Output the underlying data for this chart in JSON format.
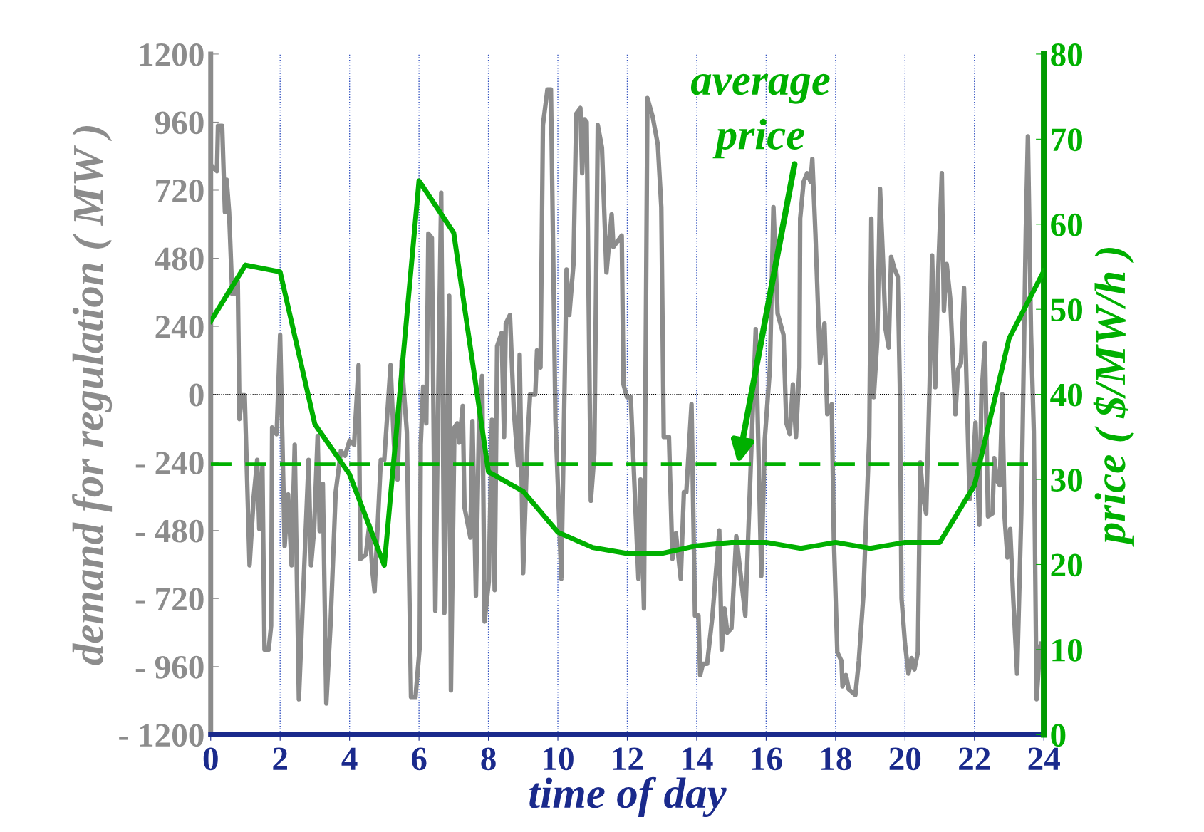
{
  "chart_data": {
    "type": "line",
    "xlabel": "time of day",
    "ylabel": "demand for regulation ( MW )",
    "y2label": "price ( $/MW/h )",
    "xlim": [
      0,
      24
    ],
    "xticks": [
      0,
      2,
      4,
      6,
      8,
      10,
      12,
      14,
      16,
      18,
      20,
      22,
      24
    ],
    "ylim": [
      -1200,
      1200
    ],
    "yticks": [
      {
        "value": -1200,
        "label": "- 1200"
      },
      {
        "value": -960,
        "label": "- 960"
      },
      {
        "value": -720,
        "label": "- 720"
      },
      {
        "value": -480,
        "label": "- 480"
      },
      {
        "value": -240,
        "label": "- 240"
      },
      0,
      240,
      480,
      720,
      960,
      1200
    ],
    "y2lim": [
      0,
      80
    ],
    "y2ticks": [
      0,
      10,
      20,
      30,
      40,
      50,
      60,
      70,
      80
    ],
    "grid": "x",
    "legend": false,
    "ref_lines": [
      {
        "axis": "y",
        "value": 0,
        "color": "#000000",
        "line_style": "dotted"
      },
      {
        "axis": "y2",
        "value": 31.8,
        "color": "#00b000",
        "line_style": "dashed"
      }
    ],
    "annotations": [
      "average\nprice"
    ],
    "series": [
      {
        "axis": "y",
        "color": "#8c8c8c",
        "x": [
          0,
          0.0,
          0.18,
          0.21,
          0.33,
          0.41,
          0.46,
          0.53,
          0.62,
          0.7,
          0.78,
          0.83,
          0.9,
          0.98,
          1.12,
          1.24,
          1.34,
          1.4,
          1.49,
          1.55,
          1.67,
          1.74,
          1.77,
          1.9,
          2.0,
          2.13,
          2.23,
          2.33,
          2.42,
          2.54,
          2.82,
          2.89,
          2.98,
          3.08,
          3.14,
          3.23,
          3.33,
          3.45,
          3.6,
          3.75,
          3.87,
          4.0,
          4.13,
          4.26,
          4.31,
          4.47,
          4.57,
          4.66,
          4.72,
          4.9,
          5.0,
          5.18,
          5.28,
          5.38,
          5.5,
          5.65,
          5.77,
          5.9,
          6.02,
          6.05,
          6.12,
          6.21,
          6.27,
          6.37,
          6.47,
          6.56,
          6.64,
          6.73,
          6.87,
          6.92,
          7.02,
          7.1,
          7.16,
          7.26,
          7.31,
          7.48,
          7.54,
          7.64,
          7.74,
          7.82,
          7.89,
          8.01,
          8.1,
          8.18,
          8.25,
          8.38,
          8.45,
          8.5,
          8.62,
          8.73,
          8.85,
          8.9,
          9.0,
          9.13,
          9.2,
          9.35,
          9.4,
          9.5,
          9.57,
          9.7,
          9.8,
          9.93,
          10.1,
          10.25,
          10.33,
          10.45,
          10.53,
          10.65,
          10.7,
          10.77,
          10.83,
          10.95,
          11.05,
          11.15,
          11.27,
          11.4,
          11.55,
          11.6,
          11.84,
          11.89,
          11.99,
          12.1,
          12.32,
          12.38,
          12.48,
          12.58,
          12.73,
          12.88,
          12.98,
          13.05,
          13.2,
          13.3,
          13.4,
          13.54,
          13.63,
          13.7,
          13.85,
          13.95,
          14.05,
          14.1,
          14.18,
          14.3,
          14.45,
          14.65,
          14.72,
          14.8,
          14.88,
          15.0,
          15.14,
          15.4,
          15.7,
          15.86,
          15.96,
          16.11,
          16.21,
          16.33,
          16.5,
          16.58,
          16.68,
          16.77,
          16.86,
          16.96,
          16.98,
          17.08,
          17.18,
          17.28,
          17.33,
          17.42,
          17.55,
          17.68,
          17.76,
          17.89,
          17.95,
          18.05,
          18.17,
          18.2,
          18.3,
          18.38,
          18.57,
          18.67,
          18.8,
          18.97,
          19.03,
          19.1,
          19.2,
          19.28,
          19.37,
          19.44,
          19.53,
          19.6,
          19.69,
          19.79,
          19.85,
          19.9,
          20.0,
          20.1,
          20.19,
          20.27,
          20.37,
          20.44,
          20.52,
          20.61,
          20.71,
          20.78,
          20.87,
          20.96,
          21.06,
          21.12,
          21.2,
          21.3,
          21.45,
          21.53,
          21.61,
          21.7,
          21.78,
          21.86,
          21.95,
          22.03,
          22.14,
          22.2,
          22.3,
          22.39,
          22.52,
          22.57,
          22.65,
          22.73,
          22.8,
          22.87,
          22.95,
          23.03,
          23.12,
          23.23,
          23.35,
          23.48,
          23.54,
          23.63,
          23.71,
          23.79,
          23.89,
          23.92
        ],
        "values": [
          -1200,
          810,
          787,
          947,
          947,
          643,
          757,
          643,
          354,
          354,
          400,
          -87,
          -3,
          -3,
          -603,
          -360,
          -231,
          -474,
          -254,
          -900,
          -900,
          -816,
          -117,
          -140,
          210,
          -535,
          -353,
          -603,
          -178,
          -1075,
          -231,
          -603,
          -474,
          -147,
          -482,
          -315,
          -1090,
          -816,
          -345,
          -200,
          -216,
          -163,
          -178,
          103,
          -581,
          -565,
          -459,
          -626,
          -695,
          -231,
          -231,
          103,
          -178,
          -300,
          119,
          -132,
          -1067,
          -1067,
          -892,
          -178,
          27,
          -102,
          567,
          552,
          -763,
          43,
          711,
          -771,
          347,
          -1044,
          -117,
          -102,
          -170,
          -41,
          -398,
          -505,
          -94,
          -710,
          -18,
          65,
          -801,
          -660,
          -90,
          -690,
          170,
          217,
          -150,
          250,
          280,
          -55,
          -250,
          140,
          -630,
          -150,
          0,
          0,
          155,
          95,
          950,
          1075,
          1075,
          -90,
          -650,
          440,
          280,
          460,
          990,
          1010,
          780,
          970,
          960,
          -375,
          -210,
          950,
          870,
          430,
          635,
          520,
          560,
          35,
          -10,
          -10,
          -650,
          -300,
          -755,
          1045,
          980,
          880,
          660,
          -150,
          -150,
          -580,
          -490,
          -650,
          -345,
          -345,
          -35,
          -780,
          -780,
          -990,
          -950,
          -950,
          -785,
          -480,
          -900,
          -755,
          -840,
          -825,
          -500,
          -780,
          230,
          -640,
          -160,
          95,
          660,
          285,
          210,
          -100,
          -140,
          35,
          -150,
          95,
          620,
          750,
          780,
          750,
          830,
          565,
          110,
          250,
          -70,
          -35,
          -510,
          -910,
          -940,
          -1030,
          -990,
          -1040,
          -1060,
          -940,
          -710,
          -150,
          620,
          -10,
          190,
          725,
          460,
          230,
          165,
          485,
          445,
          415,
          35,
          -720,
          -880,
          -985,
          -930,
          -970,
          -910,
          -240,
          -360,
          -420,
          40,
          490,
          25,
          445,
          780,
          295,
          460,
          340,
          -70,
          90,
          110,
          375,
          5,
          -370,
          -270,
          -100,
          -460,
          -10,
          180,
          -430,
          -420,
          -225,
          -305,
          -320,
          0,
          -435,
          -575,
          -475,
          -725,
          -985,
          -420,
          580,
          910,
          215,
          -130,
          -1075,
          -890,
          -880
        ]
      },
      {
        "axis": "y2",
        "color": "#00b000",
        "x": [
          0,
          1,
          2,
          3,
          4,
          5,
          6,
          7,
          8,
          9,
          10,
          11,
          12,
          13,
          14,
          15,
          16,
          17,
          18,
          19,
          20,
          21,
          22,
          23,
          24
        ],
        "values": [
          48.6,
          55.2,
          54.4,
          36.5,
          30.6,
          19.9,
          65.1,
          59.0,
          30.9,
          28.6,
          23.8,
          22.0,
          21.3,
          21.3,
          22.2,
          22.6,
          22.6,
          21.9,
          22.6,
          21.9,
          22.6,
          22.6,
          29.3,
          46.6,
          54.5
        ]
      }
    ]
  }
}
